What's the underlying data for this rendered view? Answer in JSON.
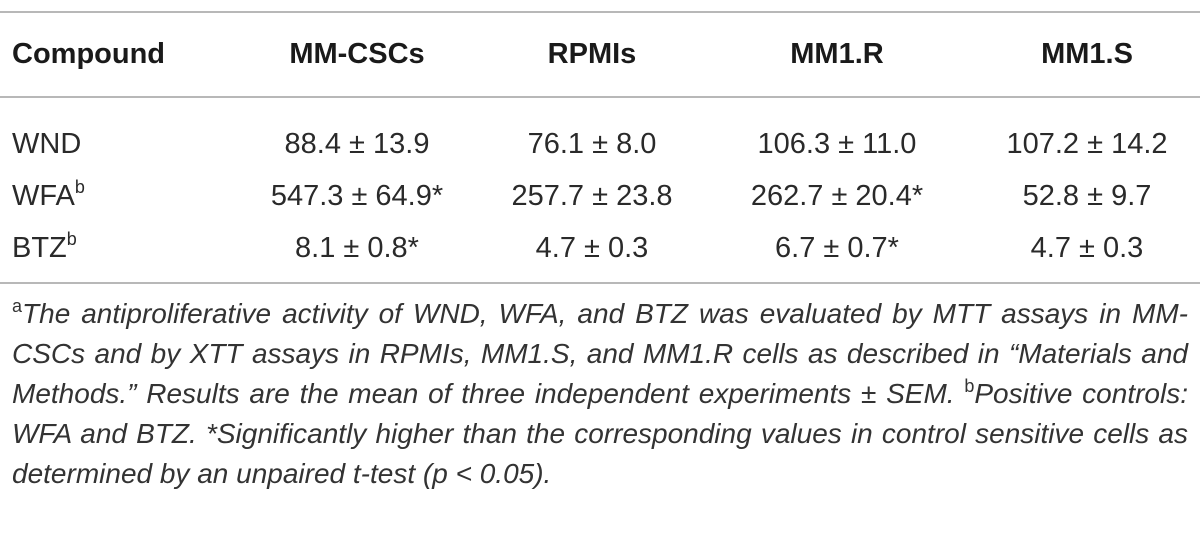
{
  "table": {
    "headers": [
      "Compound",
      "MM-CSCs",
      "RPMIs",
      "MM1.R",
      "MM1.S"
    ],
    "rows": [
      {
        "compound": "WND",
        "sup": "",
        "values": [
          "88.4 ± 13.9",
          "76.1 ± 8.0",
          "106.3 ± 11.0",
          "107.2 ± 14.2"
        ]
      },
      {
        "compound": "WFA",
        "sup": "b",
        "values": [
          "547.3 ± 64.9*",
          "257.7 ± 23.8",
          "262.7 ± 20.4*",
          "52.8 ± 9.7"
        ]
      },
      {
        "compound": "BTZ",
        "sup": "b",
        "values": [
          "8.1 ± 0.8*",
          "4.7 ± 0.3",
          "6.7 ± 0.7*",
          "4.7 ± 0.3"
        ]
      }
    ]
  },
  "footnotes": {
    "a_mark": "a",
    "a_text": "The antiproliferative activity of WND, WFA, and BTZ was evaluated by MTT assays in MM-CSCs and by XTT assays in RPMIs, MM1.S, and MM1.R cells as described in “Materials and Methods.” Results are the mean of three independent experiments ± SEM.",
    "b_mark": "b",
    "b_text": "Positive controls: WFA and BTZ.",
    "star_text": "*Significantly higher than the corresponding values in control sensitive cells as determined by an unpaired t-test (p < 0.05)."
  }
}
